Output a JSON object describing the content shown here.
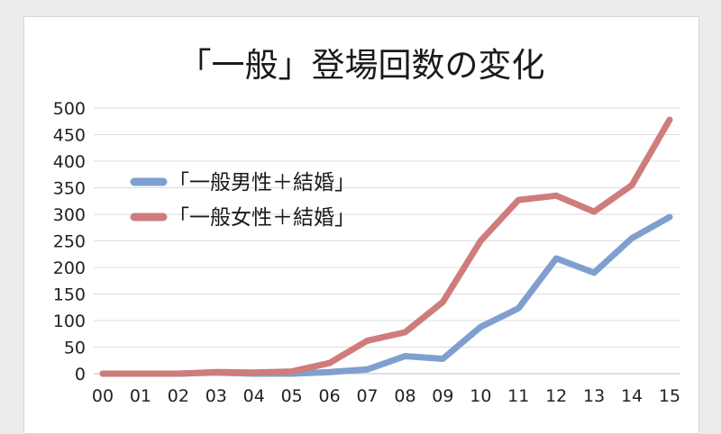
{
  "chart_data": {
    "type": "line",
    "title": "「一般」登場回数の変化",
    "xlabel": "",
    "ylabel": "",
    "categories": [
      "00",
      "01",
      "02",
      "03",
      "04",
      "05",
      "06",
      "07",
      "08",
      "09",
      "10",
      "11",
      "12",
      "13",
      "14",
      "15"
    ],
    "ylim": [
      0,
      500
    ],
    "yticks": [
      "0",
      "50",
      "100",
      "150",
      "200",
      "250",
      "300",
      "350",
      "400",
      "450",
      "500"
    ],
    "grid": true,
    "legend_position": "upper-left",
    "series": [
      {
        "name": "「一般男性＋結婚」",
        "color": "#7f9fcf",
        "values": [
          0,
          0,
          0,
          2,
          0,
          0,
          3,
          8,
          33,
          28,
          88,
          123,
          217,
          190,
          255,
          295
        ]
      },
      {
        "name": "「一般女性＋結婚」",
        "color": "#cf7c7c",
        "values": [
          0,
          0,
          0,
          3,
          2,
          4,
          20,
          62,
          78,
          135,
          250,
          327,
          335,
          305,
          355,
          478
        ]
      }
    ]
  }
}
